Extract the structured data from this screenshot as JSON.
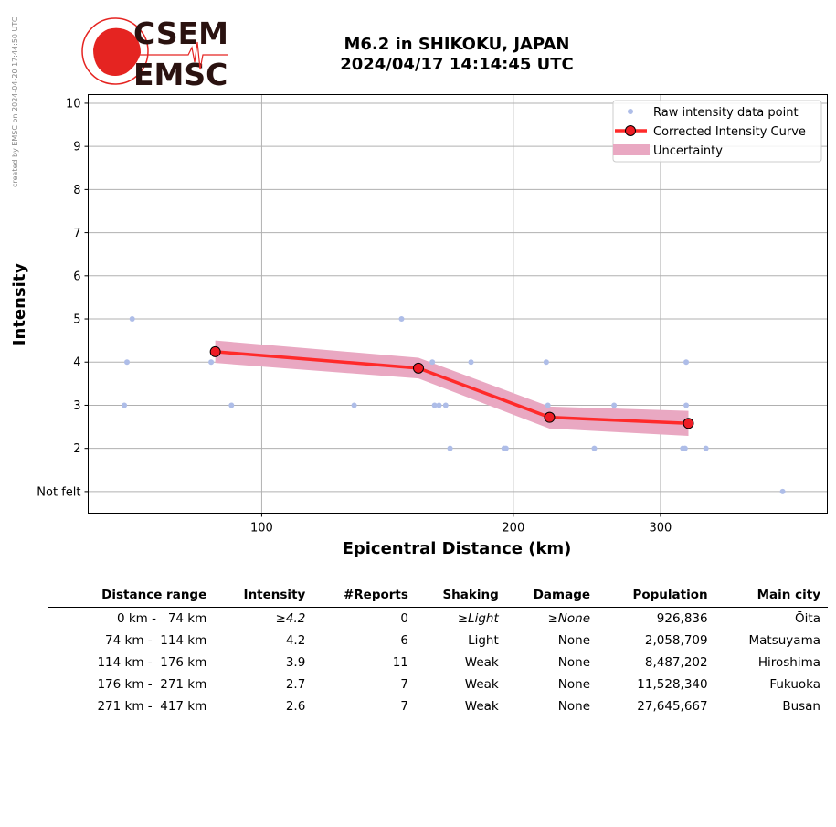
{
  "credit": "created by EMSC on 2024-04-20 17:44:50 UTC",
  "logo": {
    "top": "CSEM",
    "bottom": "EMSC"
  },
  "title_line1": "M6.2 in SHIKOKU, JAPAN",
  "title_line2": "2024/04/17 14:14:45 UTC",
  "colors": {
    "raw": "#aebde8",
    "curve": "#ff2a2a",
    "marker": "#ee1c25",
    "band": "#e9a8c2",
    "logo_red": "#e52421",
    "logo_dark": "#2a1210"
  },
  "chart_data": {
    "type": "scatter",
    "xlabel": "Epicentral Distance (km)",
    "ylabel": "Intensity",
    "xscale": "log",
    "xlim": [
      62,
      475
    ],
    "ylim": [
      0.5,
      10.2
    ],
    "xticks": [
      100,
      200,
      300
    ],
    "yticks": [
      1,
      2,
      3,
      4,
      5,
      6,
      7,
      8,
      9,
      10
    ],
    "ytick_labels": [
      "Not felt",
      "2",
      "3",
      "4",
      "5",
      "6",
      "7",
      "8",
      "9",
      "10"
    ],
    "grid": true,
    "legend_position": "top-right",
    "legend": [
      "Raw intensity data point",
      "Corrected Intensity Curve",
      "Uncertainty"
    ],
    "raw_points": [
      [
        70,
        5
      ],
      [
        69,
        4
      ],
      [
        68.5,
        3
      ],
      [
        87,
        4
      ],
      [
        92,
        3
      ],
      [
        129,
        3
      ],
      [
        147,
        5
      ],
      [
        160,
        4
      ],
      [
        161,
        3
      ],
      [
        163,
        3
      ],
      [
        166,
        3
      ],
      [
        168,
        2
      ],
      [
        178,
        4
      ],
      [
        195,
        2
      ],
      [
        196,
        2
      ],
      [
        219,
        4
      ],
      [
        220,
        3
      ],
      [
        250,
        2
      ],
      [
        264,
        3
      ],
      [
        319,
        2
      ],
      [
        321,
        2
      ],
      [
        322,
        4
      ],
      [
        322,
        3
      ],
      [
        340,
        2
      ],
      [
        420,
        1
      ]
    ],
    "curve": [
      [
        88,
        4.24
      ],
      [
        154,
        3.86
      ],
      [
        221,
        2.72
      ],
      [
        324,
        2.58
      ]
    ],
    "uncertainty": {
      "upper": [
        [
          88,
          4.5
        ],
        [
          154,
          4.1
        ],
        [
          221,
          2.97
        ],
        [
          324,
          2.87
        ]
      ],
      "lower": [
        [
          88,
          3.98
        ],
        [
          154,
          3.62
        ],
        [
          221,
          2.46
        ],
        [
          324,
          2.29
        ]
      ]
    }
  },
  "table": {
    "headers": [
      "Distance range",
      "Intensity",
      "#Reports",
      "Shaking",
      "Damage",
      "Population",
      "Main city"
    ],
    "rows": [
      {
        "range": "0 km -   74 km",
        "intensity": "≥4.2",
        "reports": "0",
        "shaking": "≥Light",
        "damage": "≥None",
        "population": "926,836",
        "city": "Ōita",
        "italic": true
      },
      {
        "range": "74 km -  114 km",
        "intensity": "4.2",
        "reports": "6",
        "shaking": "Light",
        "damage": "None",
        "population": "2,058,709",
        "city": "Matsuyama",
        "italic": false
      },
      {
        "range": "114 km -  176 km",
        "intensity": "3.9",
        "reports": "11",
        "shaking": "Weak",
        "damage": "None",
        "population": "8,487,202",
        "city": "Hiroshima",
        "italic": false
      },
      {
        "range": "176 km -  271 km",
        "intensity": "2.7",
        "reports": "7",
        "shaking": "Weak",
        "damage": "None",
        "population": "11,528,340",
        "city": "Fukuoka",
        "italic": false
      },
      {
        "range": "271 km -  417 km",
        "intensity": "2.6",
        "reports": "7",
        "shaking": "Weak",
        "damage": "None",
        "population": "27,645,667",
        "city": "Busan",
        "italic": false
      }
    ]
  }
}
